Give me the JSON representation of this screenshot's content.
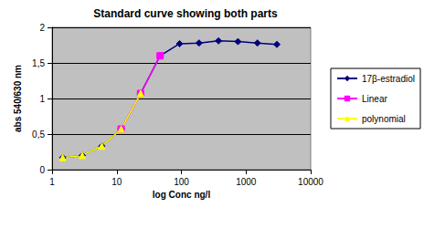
{
  "chart_data": {
    "type": "line",
    "title": "Standard curve showing both parts",
    "x_label": "log Conc ng/l",
    "y_label": "abs 540/630 nm",
    "log": "x",
    "grid": true,
    "legend": "right",
    "xlim": [
      1,
      10000
    ],
    "xticks": [
      1,
      10,
      100,
      1000,
      10000
    ],
    "ylim": [
      0,
      2
    ],
    "yticks": [
      0,
      {
        "value": 0.5,
        "label": "0,5"
      },
      1,
      {
        "value": 1.5,
        "label": "1,5"
      },
      2
    ],
    "series": [
      {
        "name": "17β-estradiol",
        "color": "#000080",
        "marker": "diamond",
        "x": [
          1.46,
          2.93,
          5.86,
          11.7,
          23.4,
          46.9,
          93.75,
          187.5,
          375,
          750,
          1500,
          3000
        ],
        "values": [
          0.17,
          0.2,
          0.33,
          0.57,
          1.07,
          1.6,
          1.77,
          1.78,
          1.81,
          1.8,
          1.78,
          1.76
        ]
      },
      {
        "name": "Linear",
        "color": "#ff00ff",
        "marker": "square",
        "x": [
          11.7,
          23.4,
          46.9
        ],
        "values": [
          0.57,
          1.07,
          1.6
        ]
      },
      {
        "name": "polynomial",
        "color": "#ffff00",
        "marker": "triangle",
        "x": [
          1.46,
          2.93,
          5.86,
          11.7,
          23.4
        ],
        "values": [
          0.17,
          0.2,
          0.33,
          0.57,
          1.07
        ]
      }
    ]
  }
}
